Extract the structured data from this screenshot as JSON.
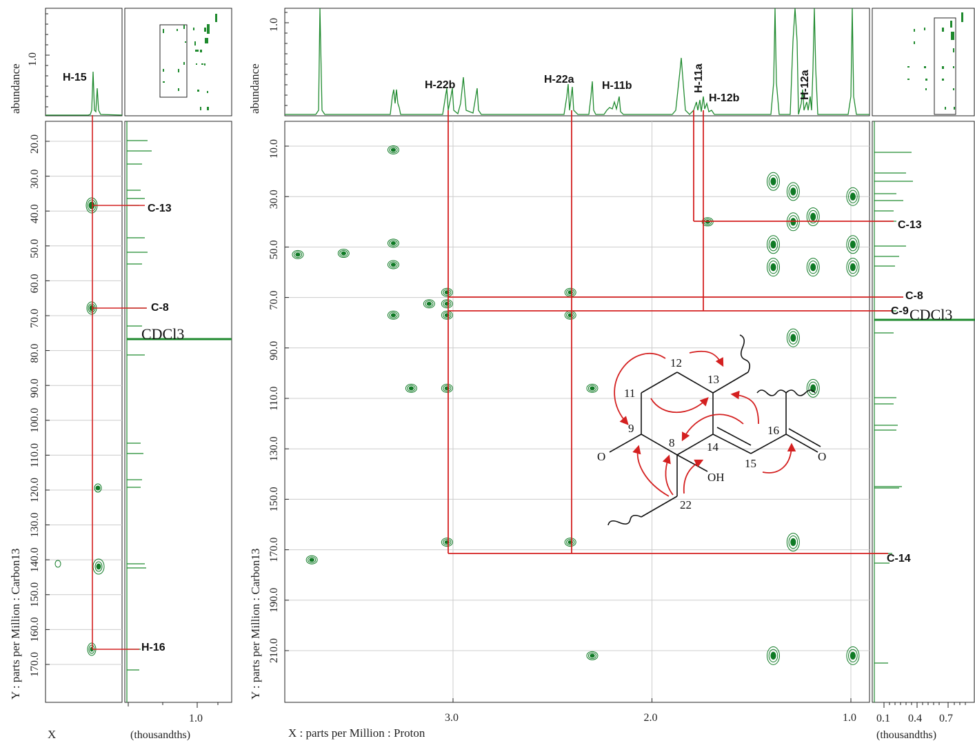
{
  "left_panel": {
    "top_ylabel": "abundance",
    "top_ytick": "1.0",
    "ylabel": "Y : parts per Million : Carbon13",
    "xlabel": "X",
    "yticks": [
      "20.0",
      "30.0",
      "40.0",
      "50.0",
      "60.0",
      "70.0",
      "80.0",
      "90.0",
      "100.0",
      "110.0",
      "120.0",
      "130.0",
      "140.0",
      "150.0",
      "160.0",
      "170.0"
    ],
    "proj_xtick": "1.0",
    "proj_xlabel": "(thousandths)",
    "labels": {
      "h15": "H-15",
      "c13": "C-13",
      "c8": "C-8",
      "h16": "H-16",
      "solvent": "CDCl3"
    }
  },
  "right_panel": {
    "top_ylabel": "abundance",
    "top_ytick": "1.0",
    "ylabel": "Y : parts per Million : Carbon13",
    "xlabel": "X : parts per Million : Proton",
    "yticks": [
      "10.0",
      "30.0",
      "50.0",
      "70.0",
      "90.0",
      "110.0",
      "130.0",
      "150.0",
      "170.0",
      "190.0",
      "210.0"
    ],
    "xticks": [
      "3.0",
      "2.0",
      "1.0"
    ],
    "proj_xticks": [
      "0.1",
      "0.4",
      "0.7"
    ],
    "proj_xlabel": "(thousandths)",
    "labels": {
      "h22b": "H-22b",
      "h22a": "H-22a",
      "h11b": "H-11b",
      "h11a": "H-11a",
      "h12b": "H-12b",
      "h12a": "H-12a",
      "c13": "C-13",
      "c8": "C-8",
      "c9": "C-9",
      "c14": "C-14",
      "solvent": "CDCl3"
    }
  },
  "structure": {
    "atoms": [
      "12",
      "13",
      "11",
      "9",
      "8",
      "14",
      "16",
      "15",
      "22",
      "O",
      "O",
      "OH"
    ]
  },
  "colors": {
    "spectrum": "#1f8a2e",
    "contour": "#0f7a25",
    "correlation": "#d42020",
    "grid": "#cccccc"
  },
  "chart_data": {
    "type": "scatter",
    "subtype": "2D NMR (HMBC) contour map",
    "xlabel": "X : parts per Million : Proton",
    "ylabel": "Y : parts per Million : Carbon13",
    "xlim": [
      3.85,
      0.9
    ],
    "ylim": [
      225,
      0
    ],
    "cross_peaks": [
      {
        "x": 3.3,
        "y": 11.5
      },
      {
        "x": 3.3,
        "y": 48.5
      },
      {
        "x": 3.3,
        "y": 57
      },
      {
        "x": 3.3,
        "y": 77
      },
      {
        "x": 3.21,
        "y": 106
      },
      {
        "x": 3.03,
        "y": 68
      },
      {
        "x": 3.03,
        "y": 72.5
      },
      {
        "x": 3.03,
        "y": 77
      },
      {
        "x": 3.03,
        "y": 106
      },
      {
        "x": 3.03,
        "y": 167
      },
      {
        "x": 3.12,
        "y": 72.5
      },
      {
        "x": 3.55,
        "y": 52.5
      },
      {
        "x": 3.78,
        "y": 53
      },
      {
        "x": 3.71,
        "y": 174
      },
      {
        "x": 2.41,
        "y": 68
      },
      {
        "x": 2.41,
        "y": 77
      },
      {
        "x": 2.41,
        "y": 167
      },
      {
        "x": 2.3,
        "y": 106
      },
      {
        "x": 2.3,
        "y": 212
      },
      {
        "x": 1.72,
        "y": 40
      },
      {
        "x": 1.39,
        "y": 24
      },
      {
        "x": 1.39,
        "y": 49
      },
      {
        "x": 1.39,
        "y": 58
      },
      {
        "x": 1.39,
        "y": 212
      },
      {
        "x": 1.29,
        "y": 28
      },
      {
        "x": 1.29,
        "y": 40
      },
      {
        "x": 1.29,
        "y": 86
      },
      {
        "x": 1.29,
        "y": 167
      },
      {
        "x": 1.19,
        "y": 38
      },
      {
        "x": 1.19,
        "y": 58
      },
      {
        "x": 1.19,
        "y": 106
      },
      {
        "x": 0.99,
        "y": 30
      },
      {
        "x": 0.99,
        "y": 49
      },
      {
        "x": 0.99,
        "y": 58
      },
      {
        "x": 0.99,
        "y": 212
      }
    ],
    "correlations": [
      {
        "from": "H-22b",
        "x": 3.03,
        "to": [
          "C-8",
          "C-9",
          "C-14"
        ]
      },
      {
        "from": "H-22a",
        "x": 2.41,
        "to": [
          "C-8",
          "C-14"
        ]
      },
      {
        "from": "H-11a",
        "x": 1.77,
        "to": [
          "C-13"
        ]
      },
      {
        "from": "H-12b",
        "x": 1.73,
        "to": [
          "C-9"
        ]
      }
    ],
    "carbon_shifts": {
      "C-13": 40,
      "C-8": 68,
      "C-9": 73,
      "C-14": 167,
      "CDCl3": 77
    },
    "left_panel_peaks": [
      {
        "label": "H-15",
        "to": [
          "C-13",
          "C-8",
          "H-16"
        ]
      },
      {
        "y": 39
      },
      {
        "y": 67.5
      },
      {
        "y": 120
      },
      {
        "y": 142
      },
      {
        "y": 166
      }
    ]
  }
}
